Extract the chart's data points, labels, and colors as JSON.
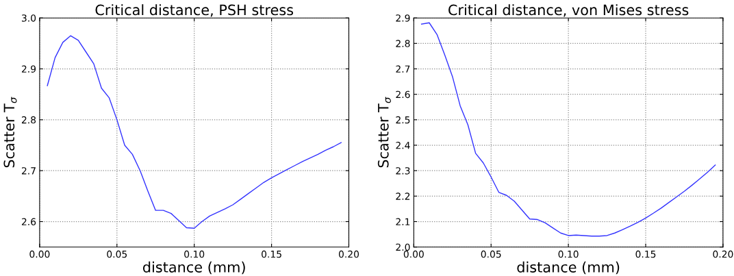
{
  "chart_data": [
    {
      "type": "line",
      "title": "Critical distance, PSH stress",
      "xlabel": "distance (mm)",
      "ylabel": "Scatter T$_{σ}$",
      "x": [
        0.005,
        0.01,
        0.015,
        0.02,
        0.025,
        0.03,
        0.035,
        0.04,
        0.045,
        0.05,
        0.055,
        0.06,
        0.065,
        0.07,
        0.075,
        0.08,
        0.085,
        0.09,
        0.095,
        0.1,
        0.105,
        0.11,
        0.115,
        0.12,
        0.125,
        0.13,
        0.135,
        0.14,
        0.145,
        0.15,
        0.155,
        0.16,
        0.165,
        0.17,
        0.175,
        0.18,
        0.185,
        0.19,
        0.195
      ],
      "series": [
        {
          "color": "#3333ff",
          "values": [
            2.867,
            2.922,
            2.952,
            2.965,
            2.956,
            2.933,
            2.91,
            2.862,
            2.843,
            2.8,
            2.75,
            2.732,
            2.7,
            2.66,
            2.622,
            2.622,
            2.616,
            2.602,
            2.588,
            2.587,
            2.6,
            2.611,
            2.618,
            2.625,
            2.633,
            2.644,
            2.655,
            2.666,
            2.677,
            2.686,
            2.694,
            2.702,
            2.71,
            2.718,
            2.725,
            2.732,
            2.74,
            2.747,
            2.755
          ]
        }
      ],
      "xlim": [
        0,
        0.2
      ],
      "ylim": [
        2.55,
        3.0
      ],
      "xticks": [
        {
          "value": 0,
          "label": "0.00"
        },
        {
          "value": 0.05,
          "label": "0.05"
        },
        {
          "value": 0.1,
          "label": "0.10"
        },
        {
          "value": 0.15,
          "label": "0.15"
        },
        {
          "value": 0.2,
          "label": "0.20"
        }
      ],
      "yticks": [
        2.6,
        2.7,
        2.8,
        2.9,
        {
          "value": 3.0,
          "label": "3.0"
        }
      ],
      "grid": true,
      "marker": "none",
      "line_style": "solid",
      "legend": false
    },
    {
      "type": "line",
      "title": "Critical distance, von Mises stress",
      "xlabel": "distance (mm)",
      "ylabel": "Scatter T$_{σ}$",
      "x": [
        0.005,
        0.01,
        0.015,
        0.02,
        0.025,
        0.03,
        0.035,
        0.04,
        0.045,
        0.05,
        0.055,
        0.06,
        0.065,
        0.07,
        0.075,
        0.08,
        0.085,
        0.09,
        0.095,
        0.1,
        0.105,
        0.11,
        0.115,
        0.12,
        0.125,
        0.13,
        0.135,
        0.14,
        0.145,
        0.15,
        0.155,
        0.16,
        0.165,
        0.17,
        0.175,
        0.18,
        0.185,
        0.19,
        0.195
      ],
      "series": [
        {
          "color": "#3333ff",
          "values": [
            2.876,
            2.881,
            2.835,
            2.755,
            2.67,
            2.555,
            2.48,
            2.368,
            2.33,
            2.275,
            2.215,
            2.203,
            2.18,
            2.145,
            2.11,
            2.108,
            2.095,
            2.075,
            2.055,
            2.045,
            2.047,
            2.045,
            2.043,
            2.043,
            2.045,
            2.055,
            2.068,
            2.082,
            2.097,
            2.114,
            2.133,
            2.153,
            2.175,
            2.197,
            2.219,
            2.243,
            2.268,
            2.294,
            2.322
          ]
        }
      ],
      "xlim": [
        0,
        0.2
      ],
      "ylim": [
        2.0,
        2.9
      ],
      "xticks": [
        {
          "value": 0,
          "label": "0.00"
        },
        {
          "value": 0.05,
          "label": "0.05"
        },
        {
          "value": 0.1,
          "label": "0.10"
        },
        {
          "value": 0.15,
          "label": "0.15"
        },
        {
          "value": 0.2,
          "label": "0.20"
        }
      ],
      "yticks": [
        {
          "value": 2.0,
          "label": "2.0"
        },
        2.1,
        2.2,
        2.3,
        2.4,
        2.5,
        2.6,
        2.7,
        2.8,
        2.9
      ],
      "grid": true,
      "marker": "none",
      "line_style": "solid",
      "legend": false
    }
  ]
}
